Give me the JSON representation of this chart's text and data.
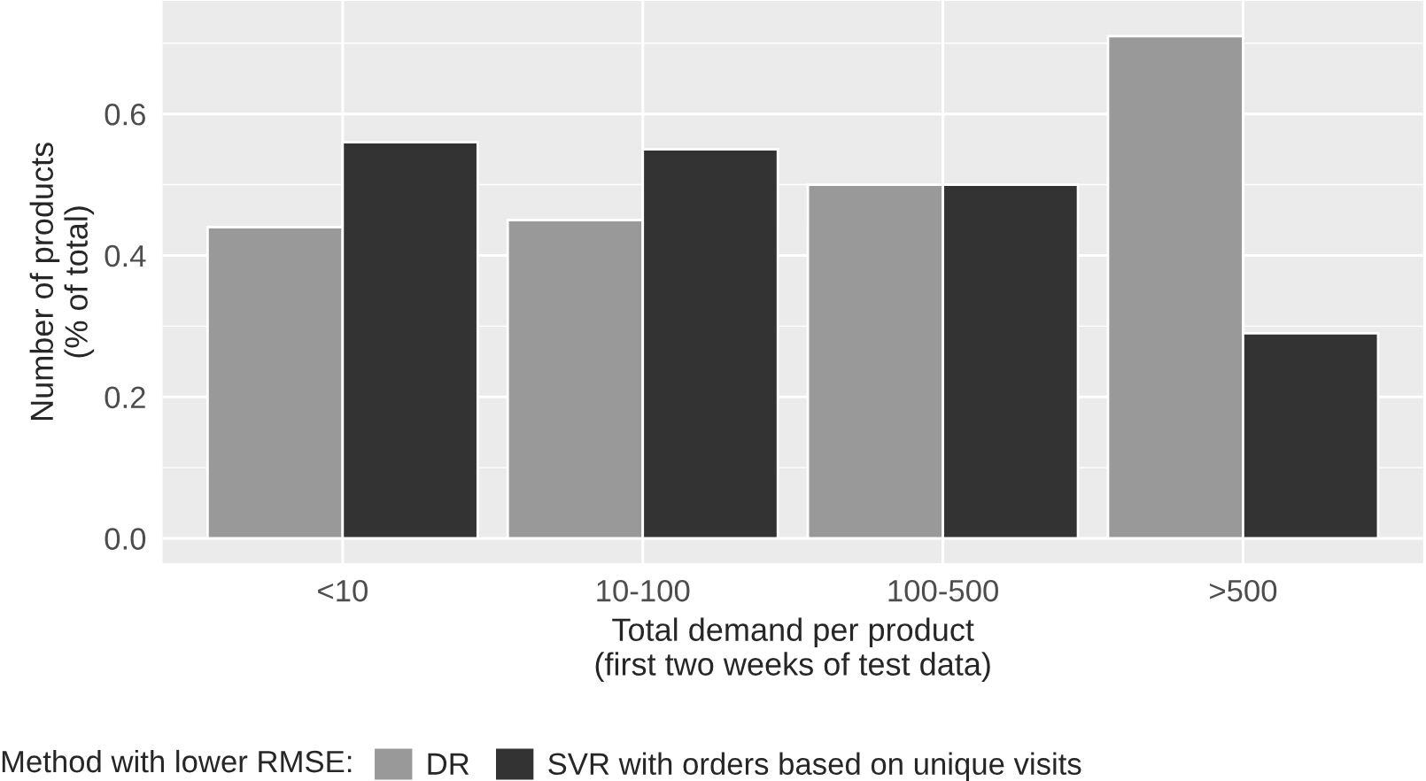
{
  "chart_data": {
    "type": "bar",
    "categories": [
      "<10",
      "10-100",
      "100-500",
      ">500"
    ],
    "series": [
      {
        "name": "DR",
        "color": "#999999",
        "values": [
          0.44,
          0.45,
          0.5,
          0.71
        ]
      },
      {
        "name": "SVR with orders based on unique visits",
        "color": "#333333",
        "values": [
          0.56,
          0.55,
          0.5,
          0.29
        ]
      }
    ],
    "xlabel": "Total demand per product\n(first two weeks of test data)",
    "ylabel": "Number of products\n(% of total)",
    "legend_title": "Method with lower RMSE:",
    "ylim": [
      -0.035,
      0.76
    ],
    "yticks": [
      {
        "value": 0,
        "label": "0.0"
      },
      0.2,
      0.4,
      0.6
    ],
    "grid": true,
    "legend": "bottom"
  }
}
